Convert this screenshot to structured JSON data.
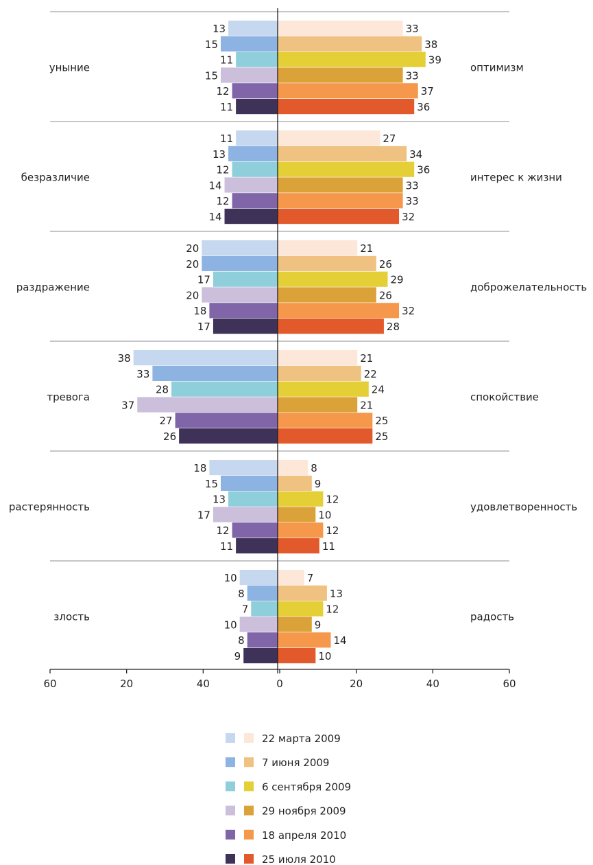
{
  "chart_data": {
    "type": "bar",
    "orientation": "horizontal-diverging",
    "legend_position": "bottom",
    "grid": false,
    "xticks": [
      "60",
      "20",
      "40",
      "0",
      "20",
      "40",
      "60"
    ],
    "xlim": [
      -60,
      60
    ],
    "series": [
      {
        "name": "22 марта 2009",
        "color_left": "#c6d8ef",
        "color_right": "#fde7d9"
      },
      {
        "name": "7 июня 2009",
        "color_left": "#8db3e2",
        "color_right": "#f0c281"
      },
      {
        "name": "6 сентября 2009",
        "color_left": "#8fcfdc",
        "color_right": "#e4cf36"
      },
      {
        "name": "29 ноября 2009",
        "color_left": "#cbbfdc",
        "color_right": "#dca23a"
      },
      {
        "name": "18 апреля 2010",
        "color_left": "#8066a8",
        "color_right": "#f5984b"
      },
      {
        "name": "25 июля 2010",
        "color_left": "#3e3258",
        "color_right": "#e2592c"
      }
    ],
    "groups": [
      {
        "left_label": "уныние",
        "right_label": "оптимизм",
        "left": [
          13,
          15,
          11,
          15,
          12,
          11
        ],
        "right": [
          33,
          38,
          39,
          33,
          37,
          36
        ]
      },
      {
        "left_label": "безразличие",
        "right_label": "интерес к жизни",
        "left": [
          11,
          13,
          12,
          14,
          12,
          14
        ],
        "right": [
          27,
          34,
          36,
          33,
          33,
          32
        ]
      },
      {
        "left_label": "раздражение",
        "right_label": "доброжелательность",
        "left": [
          20,
          20,
          17,
          20,
          18,
          17
        ],
        "right": [
          21,
          26,
          29,
          26,
          32,
          28
        ]
      },
      {
        "left_label": "тревога",
        "right_label": "спокойствие",
        "left": [
          38,
          33,
          28,
          37,
          27,
          26
        ],
        "right": [
          21,
          22,
          24,
          21,
          25,
          25
        ]
      },
      {
        "left_label": "растерянность",
        "right_label": "удовлетворенность",
        "left": [
          18,
          15,
          13,
          17,
          12,
          11
        ],
        "right": [
          8,
          9,
          12,
          10,
          12,
          11
        ]
      },
      {
        "left_label": "злость",
        "right_label": "радость",
        "left": [
          10,
          8,
          7,
          10,
          8,
          9
        ],
        "right": [
          7,
          13,
          12,
          9,
          14,
          10
        ]
      }
    ]
  }
}
